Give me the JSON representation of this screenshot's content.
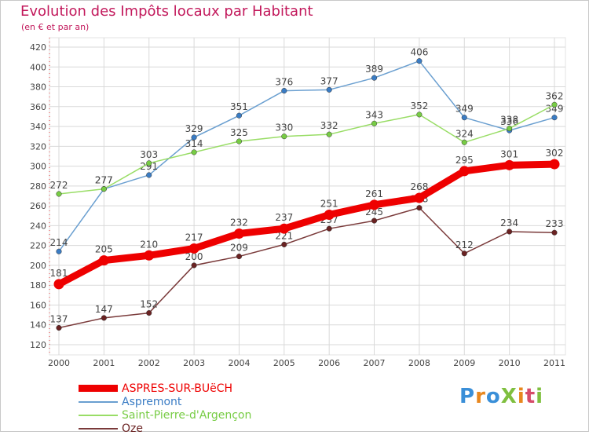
{
  "header": {
    "title": "Evolution des Impôts locaux par Habitant",
    "subtitle": "(en € et par an)"
  },
  "logo": {
    "text": "ProXiti",
    "colors": [
      "#3a8fd8",
      "#e8871e",
      "#3a8fd8",
      "#7fbf3f",
      "#e8871e",
      "#d64b6a",
      "#7fbf3f"
    ]
  },
  "colors": {
    "title": "#c2185b",
    "grid": "#d9d9d9",
    "axis": "#999999"
  },
  "chart_data": {
    "type": "line",
    "title": "Evolution des Impôts locaux par Habitant",
    "subtitle": "(en € et par an)",
    "xlabel": "",
    "ylabel": "",
    "x": [
      "2000",
      "2001",
      "2002",
      "2003",
      "2004",
      "2005",
      "2006",
      "2007",
      "2008",
      "2009",
      "2010",
      "2011"
    ],
    "ylim": [
      120,
      420
    ],
    "yticks": [
      120,
      140,
      160,
      180,
      200,
      220,
      240,
      260,
      280,
      300,
      320,
      340,
      360,
      380,
      400,
      420
    ],
    "grid": true,
    "legend_position": "bottom-left",
    "series": [
      {
        "name": "ASPRES-SUR-BUëCH",
        "color": "#ee0000",
        "marker": "#ee0000",
        "values": [
          181,
          205,
          210,
          217,
          232,
          237,
          251,
          261,
          268,
          295,
          301,
          302
        ],
        "bold": true
      },
      {
        "name": "Aspremont",
        "color": "#6a9fd0",
        "marker": "#3a7cc4",
        "values": [
          214,
          277,
          291,
          329,
          351,
          376,
          377,
          389,
          406,
          349,
          336,
          349
        ],
        "bold": false
      },
      {
        "name": "Saint-Pierre-d'Argençon",
        "color": "#99dd66",
        "marker": "#77cc44",
        "values": [
          272,
          277,
          303,
          314,
          325,
          330,
          332,
          343,
          352,
          324,
          338,
          362
        ],
        "bold": false
      },
      {
        "name": "Oze",
        "color": "#7a3a3a",
        "marker": "#6a2222",
        "values": [
          137,
          147,
          152,
          200,
          209,
          221,
          237,
          245,
          258,
          212,
          234,
          233
        ],
        "bold": false
      }
    ]
  }
}
